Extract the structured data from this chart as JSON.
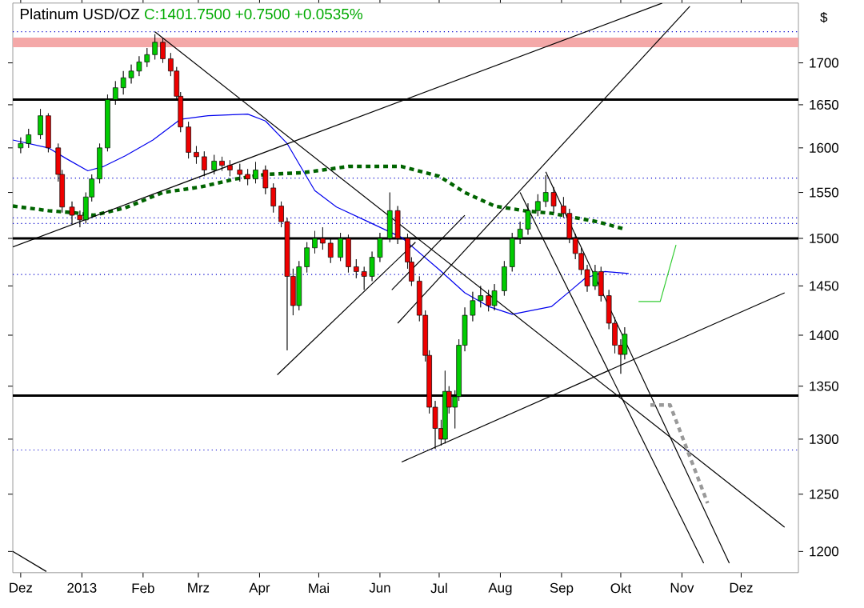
{
  "chart_data": {
    "type": "candlestick",
    "title": "Platinum USD/OZ",
    "subtitle": "C:1401.7500 +0.7500 +0.0535%",
    "ylabel": "$",
    "log": "y",
    "grid": false,
    "xlim": [
      "2012-11-27",
      "2013-12-30"
    ],
    "ylim": [
      1182,
      1774
    ],
    "xticks": [
      {
        "value": "2012-12-01",
        "label": "Dez"
      },
      {
        "value": "2013-01-01",
        "label": "2013"
      },
      {
        "value": "2013-02-01",
        "label": "Feb"
      },
      {
        "value": "2013-03-01",
        "label": "Mrz"
      },
      {
        "value": "2013-04-01",
        "label": "Apr"
      },
      {
        "value": "2013-05-01",
        "label": "Mai"
      },
      {
        "value": "2013-06-01",
        "label": "Jun"
      },
      {
        "value": "2013-07-01",
        "label": "Jul"
      },
      {
        "value": "2013-08-01",
        "label": "Aug"
      },
      {
        "value": "2013-09-01",
        "label": "Sep"
      },
      {
        "value": "2013-10-01",
        "label": "Okt"
      },
      {
        "value": "2013-11-01",
        "label": "Nov"
      },
      {
        "value": "2013-12-01",
        "label": "Dez"
      }
    ],
    "yticks": [
      1200,
      1250,
      1300,
      1350,
      1400,
      1450,
      1500,
      1550,
      1600,
      1650,
      1700
    ],
    "ref_lines": [
      {
        "axis": "y",
        "value": 1500,
        "color": "#000000",
        "line_style": "solid"
      },
      {
        "axis": "y",
        "value": 1341,
        "color": "#000000",
        "line_style": "solid"
      },
      {
        "axis": "y",
        "value": 1656,
        "color": "#000000",
        "line_style": "solid"
      },
      {
        "axis": "y",
        "value": 1738,
        "color": "#0000cc",
        "line_style": "dotted"
      },
      {
        "axis": "y",
        "value": 1566,
        "color": "#0000cc",
        "line_style": "dotted"
      },
      {
        "axis": "y",
        "value": 1522,
        "color": "#0000cc",
        "line_style": "dotted"
      },
      {
        "axis": "y",
        "value": 1516,
        "color": "#0000cc",
        "line_style": "dotted"
      },
      {
        "axis": "y",
        "value": 1462,
        "color": "#0000cc",
        "line_style": "dotted"
      },
      {
        "axis": "y",
        "value": 1290,
        "color": "#0000cc",
        "line_style": "dotted"
      }
    ],
    "bands": [
      {
        "axis": "y",
        "from": 1719,
        "to": 1731,
        "color": "#f4a8a8"
      }
    ],
    "series": [
      {
        "type": "line",
        "color": "#0000ee",
        "line_style": "solid",
        "x": [
          "2012-11-27",
          "2012-12-15",
          "2012-12-24",
          "2013-01-04",
          "2013-01-12",
          "2013-01-23",
          "2013-02-06",
          "2013-02-20",
          "2013-03-06",
          "2013-03-26",
          "2013-04-04",
          "2013-04-15",
          "2013-04-21",
          "2013-04-29",
          "2013-05-10",
          "2013-05-26",
          "2013-06-12",
          "2013-07-01",
          "2013-07-14",
          "2013-07-26",
          "2013-08-07",
          "2013-08-27",
          "2013-09-06",
          "2013-09-13",
          "2013-09-23",
          "2013-10-05"
        ],
        "values": [
          1609,
          1600,
          1588,
          1574,
          1579,
          1591,
          1609,
          1633,
          1637,
          1639,
          1631,
          1605,
          1582,
          1552,
          1534,
          1518,
          1501,
          1467,
          1443,
          1429,
          1421,
          1429,
          1446,
          1458,
          1465,
          1463
        ]
      },
      {
        "type": "line",
        "color": "#006400",
        "line_style": "dashed",
        "x": [
          "2012-11-27",
          "2012-12-15",
          "2012-12-27",
          "2013-01-07",
          "2013-01-23",
          "2013-02-11",
          "2013-03-02",
          "2013-03-20",
          "2013-04-04",
          "2013-04-23",
          "2013-05-16",
          "2013-06-12",
          "2013-07-01",
          "2013-07-14",
          "2013-07-29",
          "2013-08-13",
          "2013-08-27",
          "2013-09-19",
          "2013-10-03"
        ],
        "values": [
          1535,
          1530,
          1528,
          1525,
          1533,
          1550,
          1556,
          1565,
          1570,
          1572,
          1579,
          1579,
          1568,
          1550,
          1535,
          1530,
          1527,
          1518,
          1510
        ]
      },
      {
        "type": "line",
        "color": "#000000",
        "line_style": "solid",
        "x": [
          "2012-11-27",
          "2013-10-22"
        ],
        "values": [
          1491,
          1774
        ]
      },
      {
        "type": "line",
        "color": "#000000",
        "line_style": "solid",
        "x": [
          "2013-02-07",
          "2013-12-23"
        ],
        "values": [
          1738,
          1221
        ]
      },
      {
        "type": "line",
        "color": "#000000",
        "line_style": "solid",
        "x": [
          "2013-04-10",
          "2013-06-19"
        ],
        "values": [
          1361,
          1496
        ]
      },
      {
        "type": "line",
        "color": "#000000",
        "line_style": "solid",
        "x": [
          "2013-06-12",
          "2013-12-23"
        ],
        "values": [
          1279,
          1443
        ]
      },
      {
        "type": "line",
        "color": "#000000",
        "line_style": "solid",
        "x": [
          "2013-06-10",
          "2013-11-05"
        ],
        "values": [
          1412,
          1770
        ]
      },
      {
        "type": "line",
        "color": "#000000",
        "line_style": "solid",
        "x": [
          "2013-06-07",
          "2013-07-14"
        ],
        "values": [
          1446,
          1525
        ]
      },
      {
        "type": "line",
        "color": "#000000",
        "line_style": "solid",
        "x": [
          "2013-08-24",
          "2013-11-25"
        ],
        "values": [
          1573,
          1190
        ]
      },
      {
        "type": "line",
        "color": "#000000",
        "line_style": "solid",
        "x": [
          "2013-08-11",
          "2013-11-12"
        ],
        "values": [
          1550,
          1190
        ]
      },
      {
        "type": "line",
        "color": "#000000",
        "line_style": "solid",
        "x": [
          "2012-11-27",
          "2012-12-14"
        ],
        "values": [
          1200,
          1183
        ]
      },
      {
        "type": "line",
        "color": "#33cc33",
        "line_style": "solid",
        "x": [
          "2013-10-10",
          "2013-10-21",
          "2013-10-29"
        ],
        "values": [
          1434,
          1434,
          1493
        ]
      },
      {
        "type": "line",
        "color": "#999999",
        "line_style": "dashed",
        "x": [
          "2013-10-16",
          "2013-10-26",
          "2013-11-14"
        ],
        "values": [
          1332,
          1332,
          1242
        ]
      },
      {
        "x": [
          "2012-12-01",
          "2012-12-05",
          "2012-12-11",
          "2012-12-15",
          "2012-12-20",
          "2012-12-22",
          "2012-12-27",
          "2012-12-31",
          "2013-01-03",
          "2013-01-06",
          "2013-01-10",
          "2013-01-14",
          "2013-01-18",
          "2013-01-22",
          "2013-01-26",
          "2013-01-30",
          "2013-02-03",
          "2013-02-07",
          "2013-02-11",
          "2013-02-15",
          "2013-02-18",
          "2013-02-20",
          "2013-02-24",
          "2013-02-28",
          "2013-03-04",
          "2013-03-09",
          "2013-03-13",
          "2013-03-17",
          "2013-03-22",
          "2013-03-26",
          "2013-03-30",
          "2013-04-04",
          "2013-04-08",
          "2013-04-12",
          "2013-04-15",
          "2013-04-18",
          "2013-04-21",
          "2013-04-25",
          "2013-04-29",
          "2013-05-03",
          "2013-05-07",
          "2013-05-12",
          "2013-05-16",
          "2013-05-20",
          "2013-05-24",
          "2013-05-28",
          "2013-06-01",
          "2013-06-06",
          "2013-06-10",
          "2013-06-15",
          "2013-06-17",
          "2013-06-21",
          "2013-06-24",
          "2013-06-26",
          "2013-06-29",
          "2013-07-02",
          "2013-07-04",
          "2013-07-06",
          "2013-07-09",
          "2013-07-11",
          "2013-07-14",
          "2013-07-18",
          "2013-07-22",
          "2013-07-26",
          "2013-07-29",
          "2013-08-03",
          "2013-08-07",
          "2013-08-11",
          "2013-08-15",
          "2013-08-20",
          "2013-08-24",
          "2013-08-28",
          "2013-09-02",
          "2013-09-05",
          "2013-09-08",
          "2013-09-11",
          "2013-09-14",
          "2013-09-18",
          "2013-09-21",
          "2013-09-25",
          "2013-09-28",
          "2013-10-01",
          "2013-10-03"
        ],
        "ohlc": [
          [
            1600,
            1612,
            1594,
            1605
          ],
          [
            1605,
            1622,
            1600,
            1615
          ],
          [
            1615,
            1645,
            1610,
            1637
          ],
          [
            1637,
            1640,
            1595,
            1600
          ],
          [
            1600,
            1605,
            1562,
            1570
          ],
          [
            1570,
            1575,
            1528,
            1534
          ],
          [
            1534,
            1540,
            1515,
            1525
          ],
          [
            1525,
            1530,
            1512,
            1520
          ],
          [
            1520,
            1550,
            1516,
            1545
          ],
          [
            1545,
            1570,
            1540,
            1565
          ],
          [
            1565,
            1605,
            1560,
            1600
          ],
          [
            1600,
            1662,
            1596,
            1656
          ],
          [
            1656,
            1678,
            1650,
            1670
          ],
          [
            1670,
            1690,
            1662,
            1682
          ],
          [
            1682,
            1698,
            1675,
            1690
          ],
          [
            1690,
            1708,
            1684,
            1701
          ],
          [
            1701,
            1718,
            1695,
            1710
          ],
          [
            1710,
            1735,
            1704,
            1725
          ],
          [
            1725,
            1730,
            1700,
            1705
          ],
          [
            1705,
            1712,
            1684,
            1690
          ],
          [
            1690,
            1695,
            1655,
            1660
          ],
          [
            1660,
            1665,
            1618,
            1624
          ],
          [
            1624,
            1630,
            1588,
            1595
          ],
          [
            1595,
            1602,
            1582,
            1590
          ],
          [
            1590,
            1596,
            1568,
            1575
          ],
          [
            1575,
            1592,
            1570,
            1585
          ],
          [
            1585,
            1590,
            1574,
            1580
          ],
          [
            1580,
            1586,
            1568,
            1575
          ],
          [
            1575,
            1582,
            1562,
            1570
          ],
          [
            1570,
            1576,
            1558,
            1565
          ],
          [
            1565,
            1584,
            1560,
            1575
          ],
          [
            1575,
            1580,
            1548,
            1555
          ],
          [
            1555,
            1560,
            1528,
            1535
          ],
          [
            1535,
            1540,
            1512,
            1518
          ],
          [
            1518,
            1522,
            1385,
            1460
          ],
          [
            1460,
            1468,
            1420,
            1430
          ],
          [
            1430,
            1476,
            1425,
            1470
          ],
          [
            1470,
            1496,
            1464,
            1490
          ],
          [
            1490,
            1508,
            1484,
            1500
          ],
          [
            1500,
            1512,
            1488,
            1495
          ],
          [
            1495,
            1500,
            1474,
            1480
          ],
          [
            1480,
            1506,
            1476,
            1500
          ],
          [
            1500,
            1504,
            1464,
            1470
          ],
          [
            1470,
            1478,
            1458,
            1465
          ],
          [
            1465,
            1470,
            1446,
            1460
          ],
          [
            1460,
            1486,
            1455,
            1480
          ],
          [
            1480,
            1506,
            1475,
            1500
          ],
          [
            1500,
            1550,
            1496,
            1530
          ],
          [
            1530,
            1535,
            1494,
            1500
          ],
          [
            1500,
            1505,
            1468,
            1475
          ],
          [
            1475,
            1480,
            1450,
            1455
          ],
          [
            1455,
            1460,
            1414,
            1420
          ],
          [
            1420,
            1425,
            1374,
            1380
          ],
          [
            1380,
            1385,
            1324,
            1330
          ],
          [
            1330,
            1336,
            1291,
            1310
          ],
          [
            1310,
            1318,
            1294,
            1300
          ],
          [
            1300,
            1365,
            1296,
            1345
          ],
          [
            1345,
            1350,
            1324,
            1330
          ],
          [
            1330,
            1346,
            1310,
            1340
          ],
          [
            1340,
            1396,
            1336,
            1390
          ],
          [
            1390,
            1428,
            1384,
            1420
          ],
          [
            1420,
            1444,
            1414,
            1435
          ],
          [
            1435,
            1450,
            1428,
            1440
          ],
          [
            1440,
            1446,
            1424,
            1430
          ],
          [
            1430,
            1452,
            1425,
            1445
          ],
          [
            1445,
            1476,
            1440,
            1470
          ],
          [
            1470,
            1506,
            1465,
            1500
          ],
          [
            1500,
            1518,
            1494,
            1510
          ],
          [
            1510,
            1538,
            1504,
            1530
          ],
          [
            1530,
            1548,
            1524,
            1540
          ],
          [
            1540,
            1569,
            1534,
            1550
          ],
          [
            1550,
            1556,
            1528,
            1535
          ],
          [
            1535,
            1545,
            1522,
            1527
          ],
          [
            1527,
            1532,
            1495,
            1500
          ],
          [
            1500,
            1505,
            1478,
            1484
          ],
          [
            1484,
            1490,
            1462,
            1467
          ],
          [
            1467,
            1472,
            1444,
            1450
          ],
          [
            1450,
            1472,
            1446,
            1465
          ],
          [
            1465,
            1470,
            1434,
            1440
          ],
          [
            1440,
            1446,
            1406,
            1412
          ],
          [
            1412,
            1418,
            1382,
            1390
          ],
          [
            1390,
            1396,
            1362,
            1381
          ],
          [
            1381,
            1408,
            1376,
            1401
          ]
        ],
        "colors": [
          "#00cc00",
          "#00cc00",
          "#00cc00",
          "#ee0000",
          "#ee0000",
          "#ee0000",
          "#ee0000",
          "#ee0000",
          "#00cc00",
          "#00cc00",
          "#00cc00",
          "#00cc00",
          "#00cc00",
          "#00cc00",
          "#00cc00",
          "#00cc00",
          "#00cc00",
          "#00cc00",
          "#ee0000",
          "#ee0000",
          "#ee0000",
          "#ee0000",
          "#ee0000",
          "#ee0000",
          "#ee0000",
          "#00cc00",
          "#ee0000",
          "#ee0000",
          "#ee0000",
          "#ee0000",
          "#00cc00",
          "#ee0000",
          "#ee0000",
          "#ee0000",
          "#ee0000",
          "#ee0000",
          "#00cc00",
          "#00cc00",
          "#00cc00",
          "#ee0000",
          "#ee0000",
          "#00cc00",
          "#ee0000",
          "#ee0000",
          "#ee0000",
          "#00cc00",
          "#00cc00",
          "#00cc00",
          "#ee0000",
          "#ee0000",
          "#ee0000",
          "#ee0000",
          "#ee0000",
          "#ee0000",
          "#ee0000",
          "#ee0000",
          "#00cc00",
          "#ee0000",
          "#00cc00",
          "#00cc00",
          "#00cc00",
          "#00cc00",
          "#00cc00",
          "#ee0000",
          "#00cc00",
          "#00cc00",
          "#00cc00",
          "#00cc00",
          "#00cc00",
          "#00cc00",
          "#00cc00",
          "#ee0000",
          "#ee0000",
          "#ee0000",
          "#ee0000",
          "#ee0000",
          "#ee0000",
          "#00cc00",
          "#ee0000",
          "#ee0000",
          "#ee0000",
          "#ee0000",
          "#00cc00"
        ]
      }
    ]
  }
}
